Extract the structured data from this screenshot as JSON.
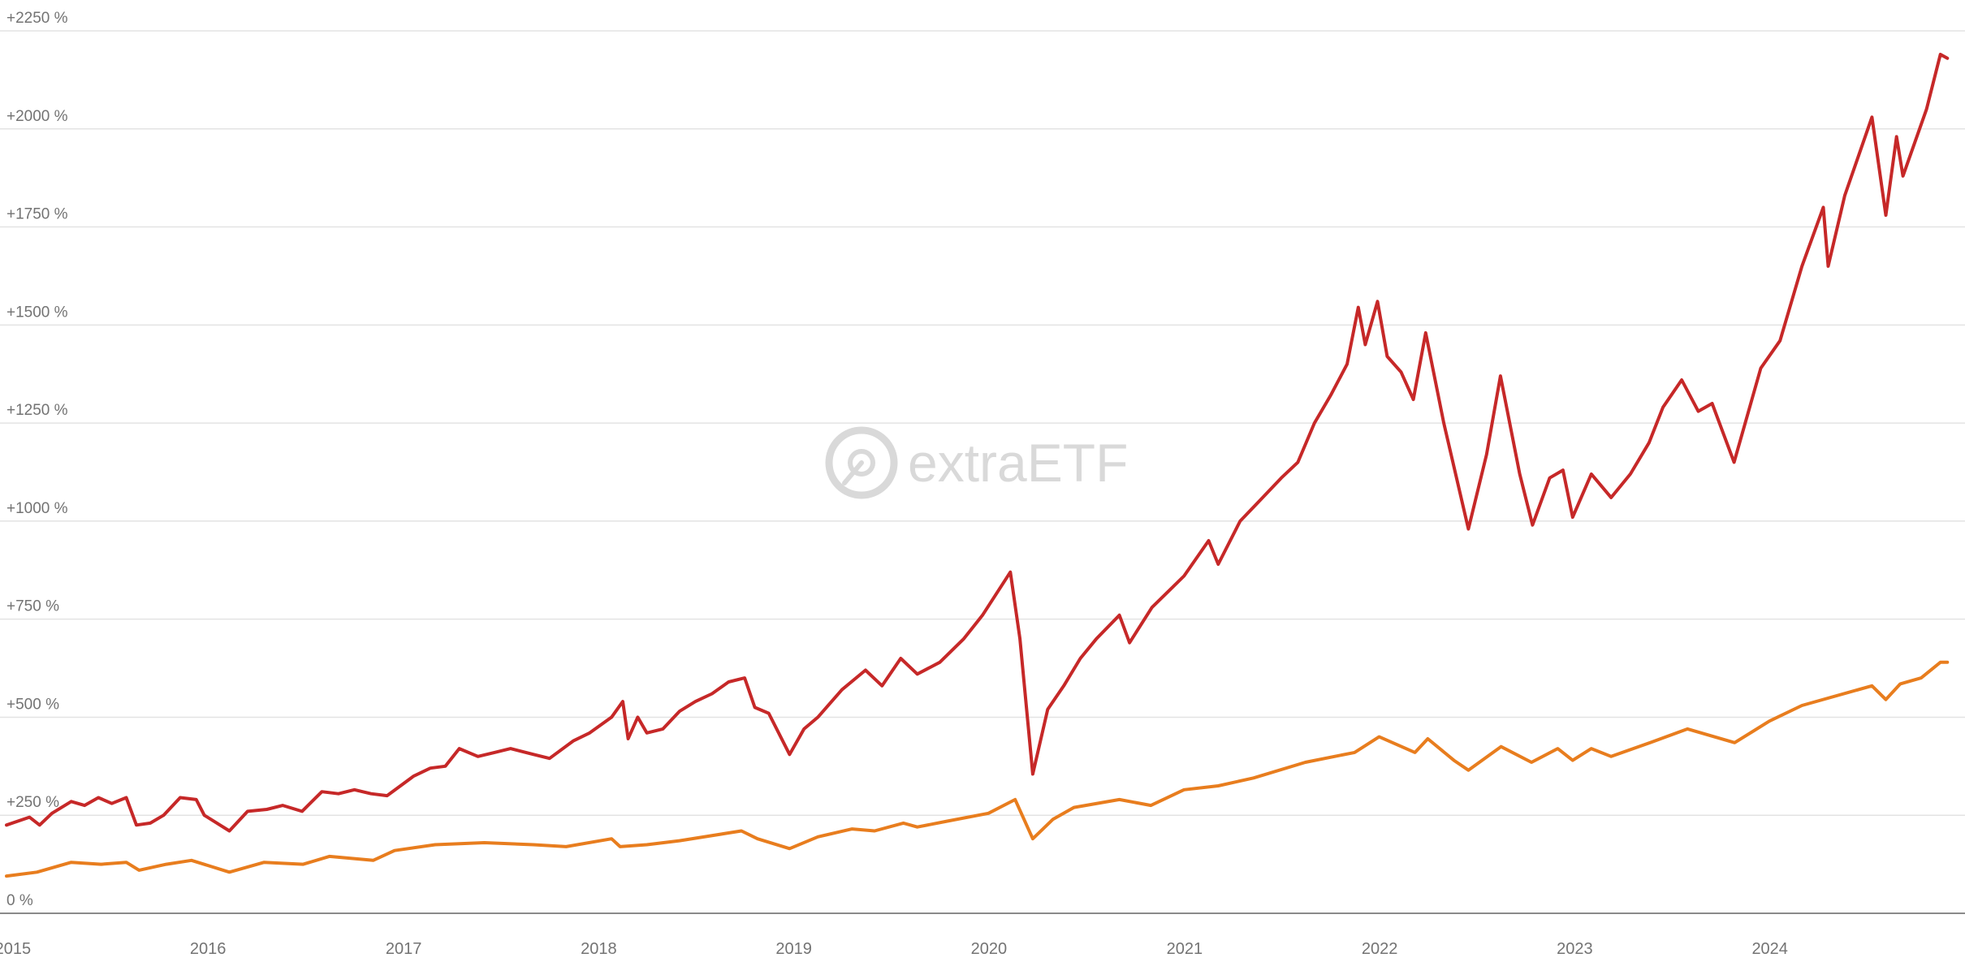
{
  "chart_data": {
    "type": "line",
    "title": "",
    "xlabel": "",
    "ylabel": "",
    "x_range": [
      "2014-12-20",
      "2024-12-28"
    ],
    "ylim": [
      0,
      2250
    ],
    "y_ticks": [
      {
        "value": 0,
        "label": "0 %"
      },
      {
        "value": 250,
        "label": "+250 %"
      },
      {
        "value": 500,
        "label": "+500 %"
      },
      {
        "value": 750,
        "label": "+750 %"
      },
      {
        "value": 1000,
        "label": "+1000 %"
      },
      {
        "value": 1250,
        "label": "+1250 %"
      },
      {
        "value": 1500,
        "label": "+1500 %"
      },
      {
        "value": 1750,
        "label": "+1750 %"
      },
      {
        "value": 2000,
        "label": "+2000 %"
      },
      {
        "value": 2250,
        "label": "+2250 %"
      }
    ],
    "x_ticks": [
      {
        "date": "2015-01-01",
        "label": "2015"
      },
      {
        "date": "2016-01-01",
        "label": "2016"
      },
      {
        "date": "2017-01-01",
        "label": "2017"
      },
      {
        "date": "2018-01-01",
        "label": "2018"
      },
      {
        "date": "2019-01-01",
        "label": "2019"
      },
      {
        "date": "2020-01-01",
        "label": "2020"
      },
      {
        "date": "2021-01-01",
        "label": "2021"
      },
      {
        "date": "2022-01-01",
        "label": "2022"
      },
      {
        "date": "2023-01-01",
        "label": "2023"
      },
      {
        "date": "2024-01-01",
        "label": "2024"
      }
    ],
    "grid": true,
    "legend": "none",
    "series": [
      {
        "color": "#c62828",
        "points": [
          [
            "2014-12-20",
            225
          ],
          [
            "2015-02-01",
            245
          ],
          [
            "2015-02-20",
            225
          ],
          [
            "2015-03-15",
            255
          ],
          [
            "2015-04-20",
            285
          ],
          [
            "2015-05-15",
            275
          ],
          [
            "2015-06-10",
            295
          ],
          [
            "2015-07-05",
            280
          ],
          [
            "2015-08-01",
            295
          ],
          [
            "2015-08-20",
            225
          ],
          [
            "2015-09-15",
            230
          ],
          [
            "2015-10-10",
            250
          ],
          [
            "2015-11-10",
            295
          ],
          [
            "2015-12-10",
            290
          ],
          [
            "2015-12-25",
            250
          ],
          [
            "2016-02-10",
            210
          ],
          [
            "2016-03-15",
            260
          ],
          [
            "2016-04-20",
            265
          ],
          [
            "2016-05-20",
            275
          ],
          [
            "2016-06-25",
            260
          ],
          [
            "2016-08-01",
            310
          ],
          [
            "2016-09-01",
            305
          ],
          [
            "2016-10-01",
            315
          ],
          [
            "2016-11-01",
            305
          ],
          [
            "2016-12-01",
            300
          ],
          [
            "2017-01-20",
            350
          ],
          [
            "2017-02-20",
            370
          ],
          [
            "2017-03-20",
            375
          ],
          [
            "2017-04-15",
            420
          ],
          [
            "2017-05-20",
            400
          ],
          [
            "2017-06-20",
            410
          ],
          [
            "2017-07-20",
            420
          ],
          [
            "2017-09-01",
            405
          ],
          [
            "2017-10-01",
            395
          ],
          [
            "2017-11-15",
            440
          ],
          [
            "2017-12-15",
            460
          ],
          [
            "2018-01-25",
            500
          ],
          [
            "2018-02-15",
            540
          ],
          [
            "2018-02-25",
            445
          ],
          [
            "2018-03-15",
            500
          ],
          [
            "2018-04-01",
            460
          ],
          [
            "2018-05-01",
            470
          ],
          [
            "2018-06-01",
            515
          ],
          [
            "2018-07-01",
            540
          ],
          [
            "2018-08-01",
            560
          ],
          [
            "2018-09-01",
            590
          ],
          [
            "2018-10-01",
            600
          ],
          [
            "2018-10-20",
            525
          ],
          [
            "2018-11-15",
            510
          ],
          [
            "2018-12-24",
            405
          ],
          [
            "2019-01-20",
            470
          ],
          [
            "2019-02-15",
            500
          ],
          [
            "2019-04-01",
            570
          ],
          [
            "2019-05-15",
            620
          ],
          [
            "2019-06-15",
            580
          ],
          [
            "2019-07-20",
            650
          ],
          [
            "2019-08-20",
            610
          ],
          [
            "2019-10-01",
            640
          ],
          [
            "2019-11-15",
            700
          ],
          [
            "2019-12-20",
            760
          ],
          [
            "2020-02-10",
            870
          ],
          [
            "2020-02-28",
            700
          ],
          [
            "2020-03-23",
            355
          ],
          [
            "2020-04-20",
            520
          ],
          [
            "2020-05-20",
            580
          ],
          [
            "2020-06-20",
            650
          ],
          [
            "2020-07-20",
            700
          ],
          [
            "2020-09-01",
            760
          ],
          [
            "2020-09-20",
            690
          ],
          [
            "2020-11-01",
            780
          ],
          [
            "2020-12-01",
            820
          ],
          [
            "2020-12-31",
            860
          ],
          [
            "2021-02-15",
            950
          ],
          [
            "2021-03-05",
            890
          ],
          [
            "2021-04-15",
            1000
          ],
          [
            "2021-05-20",
            1050
          ],
          [
            "2021-07-01",
            1110
          ],
          [
            "2021-08-01",
            1150
          ],
          [
            "2021-09-01",
            1250
          ],
          [
            "2021-10-01",
            1320
          ],
          [
            "2021-11-01",
            1400
          ],
          [
            "2021-11-22",
            1545
          ],
          [
            "2021-12-05",
            1450
          ],
          [
            "2021-12-28",
            1560
          ],
          [
            "2022-01-15",
            1420
          ],
          [
            "2022-02-10",
            1380
          ],
          [
            "2022-03-05",
            1310
          ],
          [
            "2022-03-28",
            1480
          ],
          [
            "2022-05-01",
            1250
          ],
          [
            "2022-06-16",
            980
          ],
          [
            "2022-07-20",
            1170
          ],
          [
            "2022-08-15",
            1370
          ],
          [
            "2022-09-20",
            1120
          ],
          [
            "2022-10-14",
            990
          ],
          [
            "2022-11-15",
            1110
          ],
          [
            "2022-12-10",
            1130
          ],
          [
            "2022-12-28",
            1010
          ],
          [
            "2023-02-01",
            1120
          ],
          [
            "2023-03-10",
            1060
          ],
          [
            "2023-04-15",
            1120
          ],
          [
            "2023-05-20",
            1200
          ],
          [
            "2023-06-15",
            1290
          ],
          [
            "2023-07-20",
            1360
          ],
          [
            "2023-08-20",
            1280
          ],
          [
            "2023-09-15",
            1300
          ],
          [
            "2023-10-26",
            1150
          ],
          [
            "2023-12-15",
            1390
          ],
          [
            "2024-01-20",
            1460
          ],
          [
            "2024-03-01",
            1650
          ],
          [
            "2024-04-10",
            1800
          ],
          [
            "2024-04-19",
            1650
          ],
          [
            "2024-05-20",
            1830
          ],
          [
            "2024-07-10",
            2030
          ],
          [
            "2024-08-05",
            1780
          ],
          [
            "2024-08-25",
            1980
          ],
          [
            "2024-09-06",
            1880
          ],
          [
            "2024-10-20",
            2050
          ],
          [
            "2024-11-15",
            2190
          ],
          [
            "2024-11-28",
            2180
          ]
        ]
      },
      {
        "color": "#e87d1e",
        "points": [
          [
            "2014-12-20",
            95
          ],
          [
            "2015-02-15",
            105
          ],
          [
            "2015-04-20",
            130
          ],
          [
            "2015-06-15",
            125
          ],
          [
            "2015-08-01",
            130
          ],
          [
            "2015-08-25",
            110
          ],
          [
            "2015-10-15",
            125
          ],
          [
            "2015-12-01",
            135
          ],
          [
            "2016-02-10",
            105
          ],
          [
            "2016-04-15",
            130
          ],
          [
            "2016-06-27",
            125
          ],
          [
            "2016-08-15",
            145
          ],
          [
            "2016-11-05",
            135
          ],
          [
            "2016-12-15",
            160
          ],
          [
            "2017-03-01",
            175
          ],
          [
            "2017-06-01",
            180
          ],
          [
            "2017-09-01",
            175
          ],
          [
            "2017-11-01",
            170
          ],
          [
            "2018-01-25",
            190
          ],
          [
            "2018-02-10",
            170
          ],
          [
            "2018-04-01",
            175
          ],
          [
            "2018-06-01",
            185
          ],
          [
            "2018-09-25",
            210
          ],
          [
            "2018-10-25",
            190
          ],
          [
            "2018-12-24",
            165
          ],
          [
            "2019-02-15",
            195
          ],
          [
            "2019-04-20",
            215
          ],
          [
            "2019-06-01",
            210
          ],
          [
            "2019-07-25",
            230
          ],
          [
            "2019-08-20",
            220
          ],
          [
            "2019-10-15",
            235
          ],
          [
            "2019-12-31",
            255
          ],
          [
            "2020-02-19",
            290
          ],
          [
            "2020-03-23",
            190
          ],
          [
            "2020-04-30",
            240
          ],
          [
            "2020-06-08",
            270
          ],
          [
            "2020-09-01",
            290
          ],
          [
            "2020-10-30",
            275
          ],
          [
            "2020-12-31",
            315
          ],
          [
            "2021-03-05",
            325
          ],
          [
            "2021-05-10",
            345
          ],
          [
            "2021-08-15",
            385
          ],
          [
            "2021-11-15",
            410
          ],
          [
            "2021-12-31",
            450
          ],
          [
            "2022-03-08",
            410
          ],
          [
            "2022-04-01",
            445
          ],
          [
            "2022-05-20",
            390
          ],
          [
            "2022-06-16",
            365
          ],
          [
            "2022-08-16",
            425
          ],
          [
            "2022-10-12",
            385
          ],
          [
            "2022-11-30",
            420
          ],
          [
            "2022-12-28",
            390
          ],
          [
            "2023-02-01",
            420
          ],
          [
            "2023-03-10",
            400
          ],
          [
            "2023-06-01",
            440
          ],
          [
            "2023-07-31",
            470
          ],
          [
            "2023-10-27",
            435
          ],
          [
            "2023-12-31",
            490
          ],
          [
            "2024-03-01",
            530
          ],
          [
            "2024-07-10",
            580
          ],
          [
            "2024-08-05",
            545
          ],
          [
            "2024-09-01",
            585
          ],
          [
            "2024-10-10",
            600
          ],
          [
            "2024-11-15",
            640
          ],
          [
            "2024-11-28",
            640
          ]
        ]
      }
    ],
    "watermark": "extraETF"
  }
}
